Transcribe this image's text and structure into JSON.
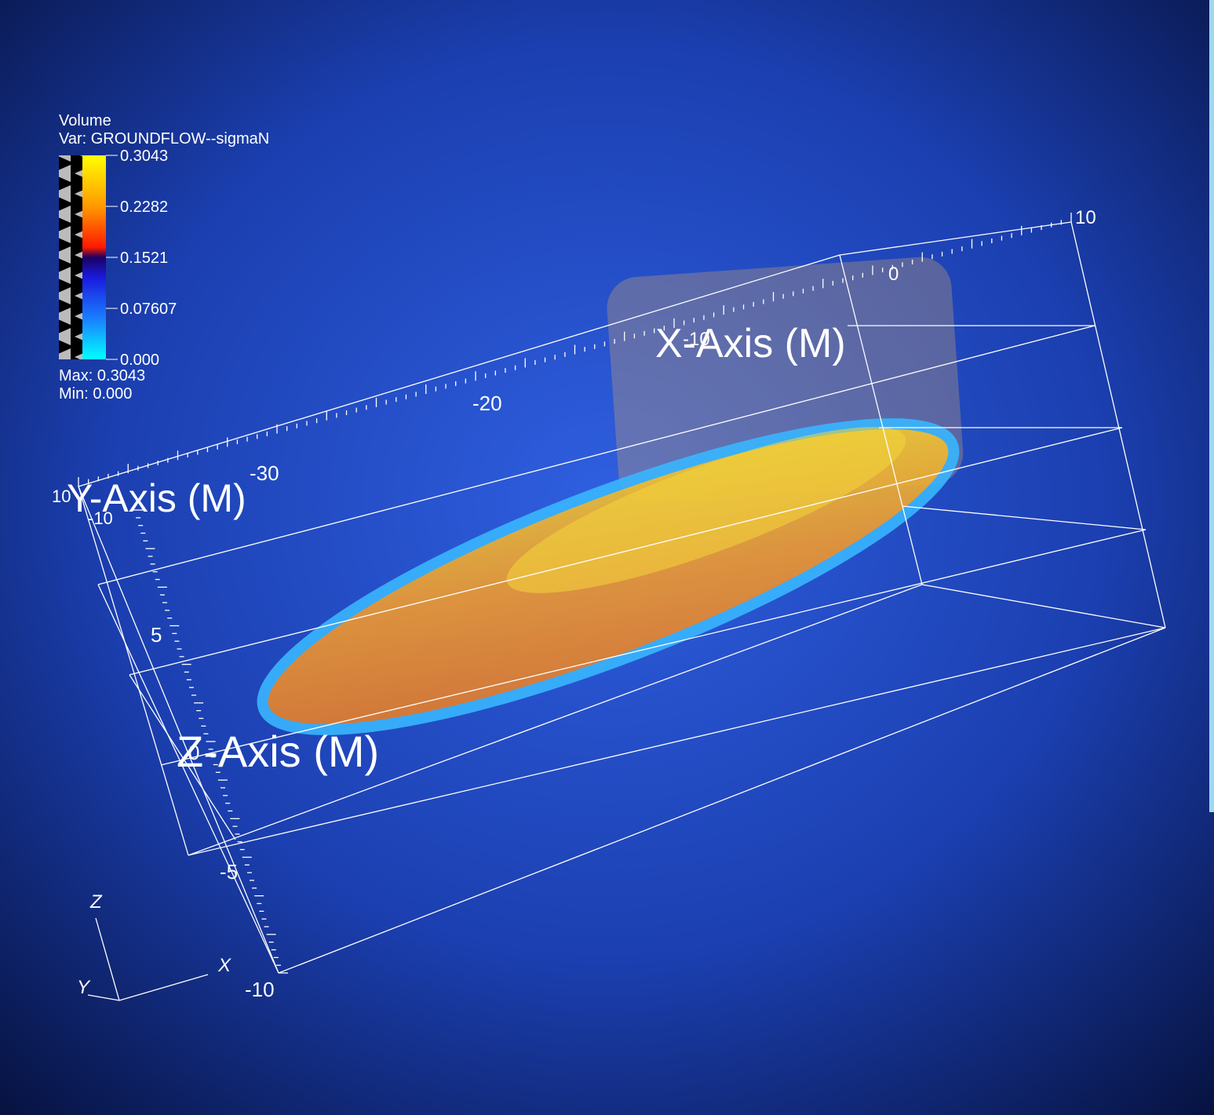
{
  "legend": {
    "title": "Volume",
    "variable": "Var: GROUNDFLOW--sigmaN",
    "ticks": [
      "0.3043",
      "0.2282",
      "0.1521",
      "0.07607",
      "0.000"
    ],
    "max": "Max:  0.3043",
    "min": "Min:  0.000"
  },
  "axes": {
    "x_title": "X-Axis (M)",
    "y_title": "Y-Axis (M)",
    "z_title": "Z-Axis (M)",
    "x_ticks": [
      "10",
      "0",
      "-10",
      "-20",
      "-30"
    ],
    "y_ticks": [
      "10",
      "-10"
    ],
    "z_ticks": [
      "5",
      "0",
      "-5",
      "-10"
    ]
  },
  "triad": {
    "z": "Z",
    "x": "X",
    "y": "Y"
  }
}
